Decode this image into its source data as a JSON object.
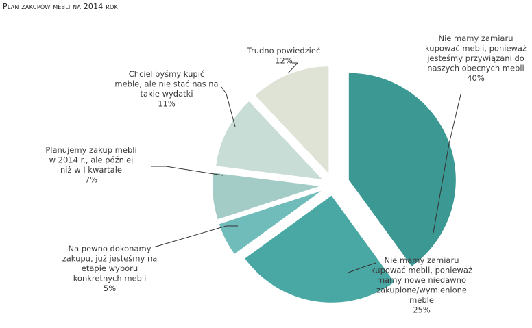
{
  "title": "Plan zakupów mebli na 2014 rok",
  "chart_data": {
    "type": "pie",
    "title": "Plan zakupów mebli na 2014 rok",
    "slices": [
      {
        "label_lines": [
          "Nie mamy zamiaru",
          "kupować mebli, ponieważ",
          "jesteśmy przywiązani do",
          "naszych obecnych mebli"
        ],
        "value_label": "40%",
        "value": 40,
        "color": "#3b9892"
      },
      {
        "label_lines": [
          "Nie mamy zamiaru",
          "kupować mebli, ponieważ",
          "mamy nowe niedawno",
          "zakupione/wymienione",
          "meble"
        ],
        "value_label": "25%",
        "value": 25,
        "color": "#4aa8a4"
      },
      {
        "label_lines": [
          "Na pewno dokonamy",
          "zakupu, już jesteśmy na",
          "etapie wyboru",
          "konkretnych mebli"
        ],
        "value_label": "5%",
        "value": 5,
        "color": "#6fbcba"
      },
      {
        "label_lines": [
          "Planujemy zakup mebli",
          "w 2014 r., ale później",
          "niż w I kwartale"
        ],
        "value_label": "7%",
        "value": 7,
        "color": "#a4ccc7"
      },
      {
        "label_lines": [
          "Chcielibyśmy kupić",
          "meble, ale nie stać nas na",
          "takie wydatki"
        ],
        "value_label": "11%",
        "value": 11,
        "color": "#c7ddd6"
      },
      {
        "label_lines": [
          "Trudno powiedzieć"
        ],
        "value_label": "12%",
        "value": 12,
        "color": "#dfe3d6"
      }
    ]
  }
}
